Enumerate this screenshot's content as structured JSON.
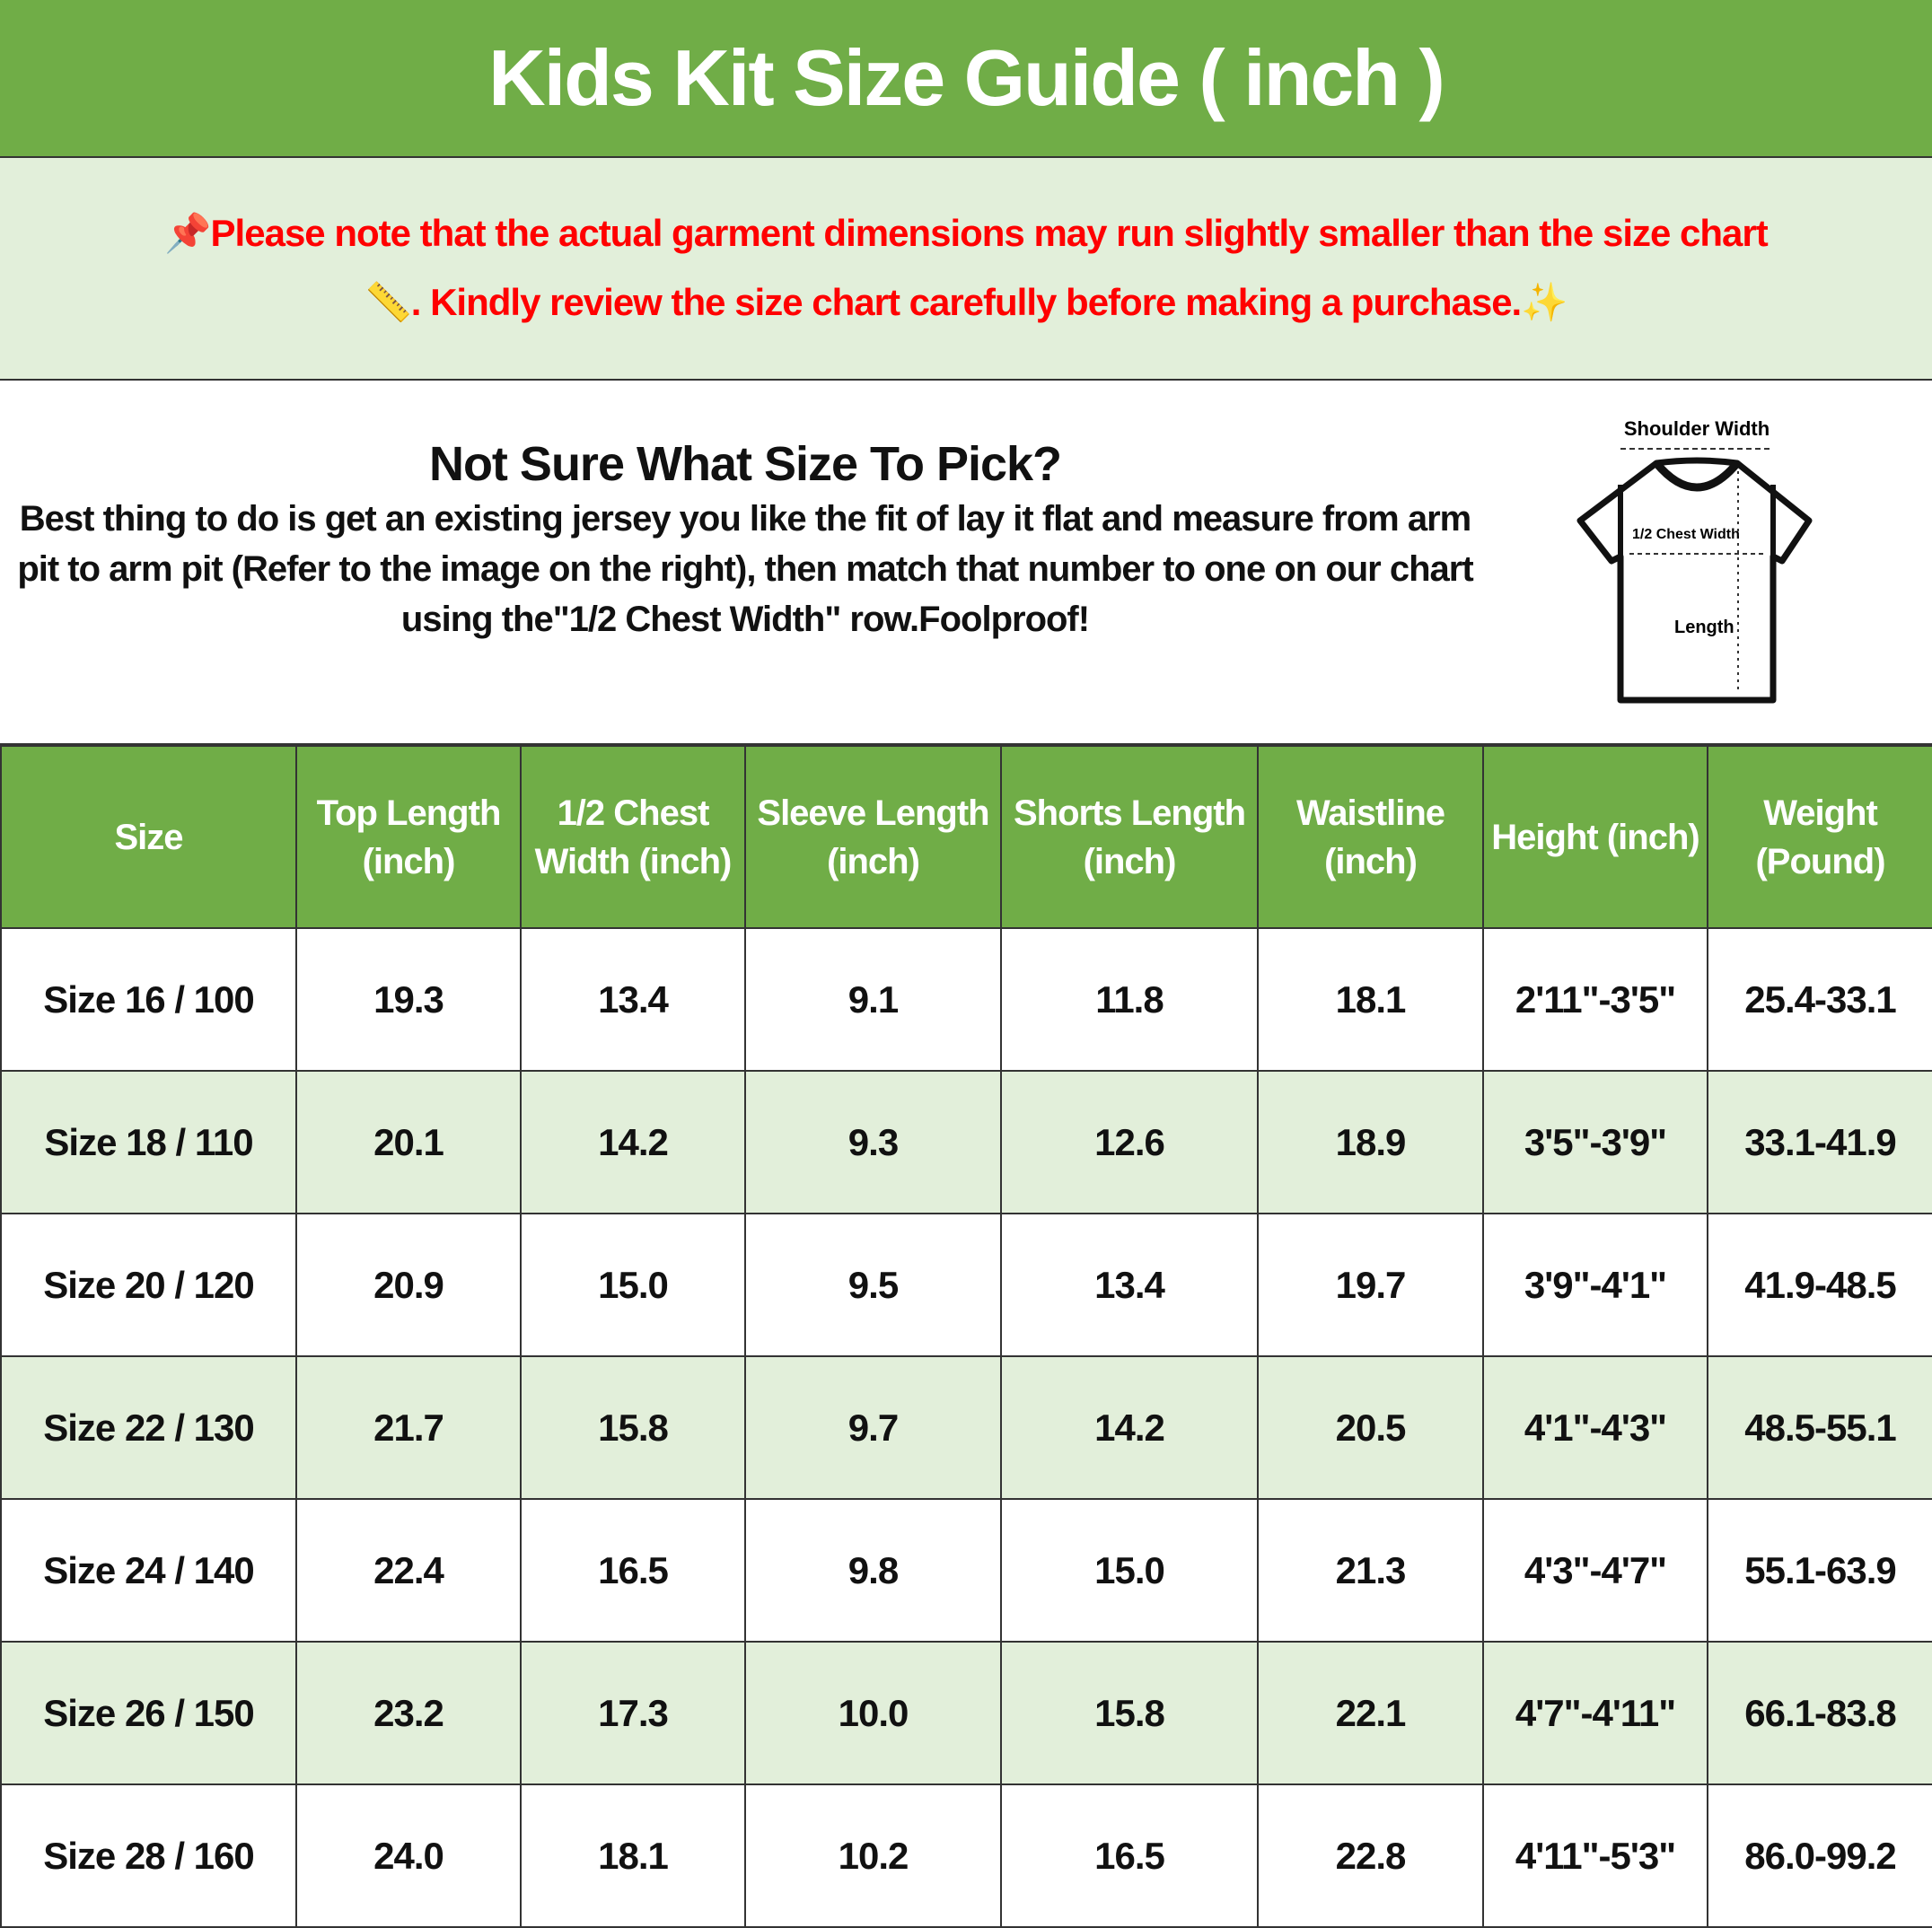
{
  "title": "Kids Kit Size Guide ( inch )",
  "note": {
    "line1_icon": "pushpin-icon",
    "line1": "Please note that the actual garment dimensions may run slightly smaller than the size chart",
    "line2_icon": "ruler-icon",
    "line2": ". Kindly review the size chart carefully before making a purchase.",
    "line2_end_icon": "sparkles-icon",
    "color": "#ff0000"
  },
  "info": {
    "heading": "Not Sure What Size To Pick?",
    "body": "Best thing to do is get an existing jersey you like the fit of lay it flat and measure from arm pit to arm pit (Refer to the image on the right), then match that number to one on our chart using the\"1/2 Chest Width\" row.Foolproof!",
    "diagram": {
      "shoulder": "Shoulder Width",
      "chest": "1/2 Chest Width",
      "length": "Length"
    }
  },
  "colors": {
    "header": "#70AD47",
    "alt_row": "#E2EFDA"
  },
  "table": {
    "headers": [
      "Size",
      "Top Length (inch)",
      "1/2 Chest Width (inch)",
      "Sleeve Length (inch)",
      "Shorts Length (inch)",
      "Waistline (inch)",
      "Height (inch)",
      "Weight (Pound)"
    ],
    "rows": [
      [
        "Size 16 / 100",
        "19.3",
        "13.4",
        "9.1",
        "11.8",
        "18.1",
        "2'11\"-3'5\"",
        "25.4-33.1"
      ],
      [
        "Size 18 / 110",
        "20.1",
        "14.2",
        "9.3",
        "12.6",
        "18.9",
        "3'5\"-3'9\"",
        "33.1-41.9"
      ],
      [
        "Size 20 / 120",
        "20.9",
        "15.0",
        "9.5",
        "13.4",
        "19.7",
        "3'9\"-4'1\"",
        "41.9-48.5"
      ],
      [
        "Size 22 / 130",
        "21.7",
        "15.8",
        "9.7",
        "14.2",
        "20.5",
        "4'1\"-4'3\"",
        "48.5-55.1"
      ],
      [
        "Size 24 / 140",
        "22.4",
        "16.5",
        "9.8",
        "15.0",
        "21.3",
        "4'3\"-4'7\"",
        "55.1-63.9"
      ],
      [
        "Size 26 / 150",
        "23.2",
        "17.3",
        "10.0",
        "15.8",
        "22.1",
        "4'7\"-4'11\"",
        "66.1-83.8"
      ],
      [
        "Size 28 / 160",
        "24.0",
        "18.1",
        "10.2",
        "16.5",
        "22.8",
        "4'11\"-5'3\"",
        "86.0-99.2"
      ]
    ]
  }
}
